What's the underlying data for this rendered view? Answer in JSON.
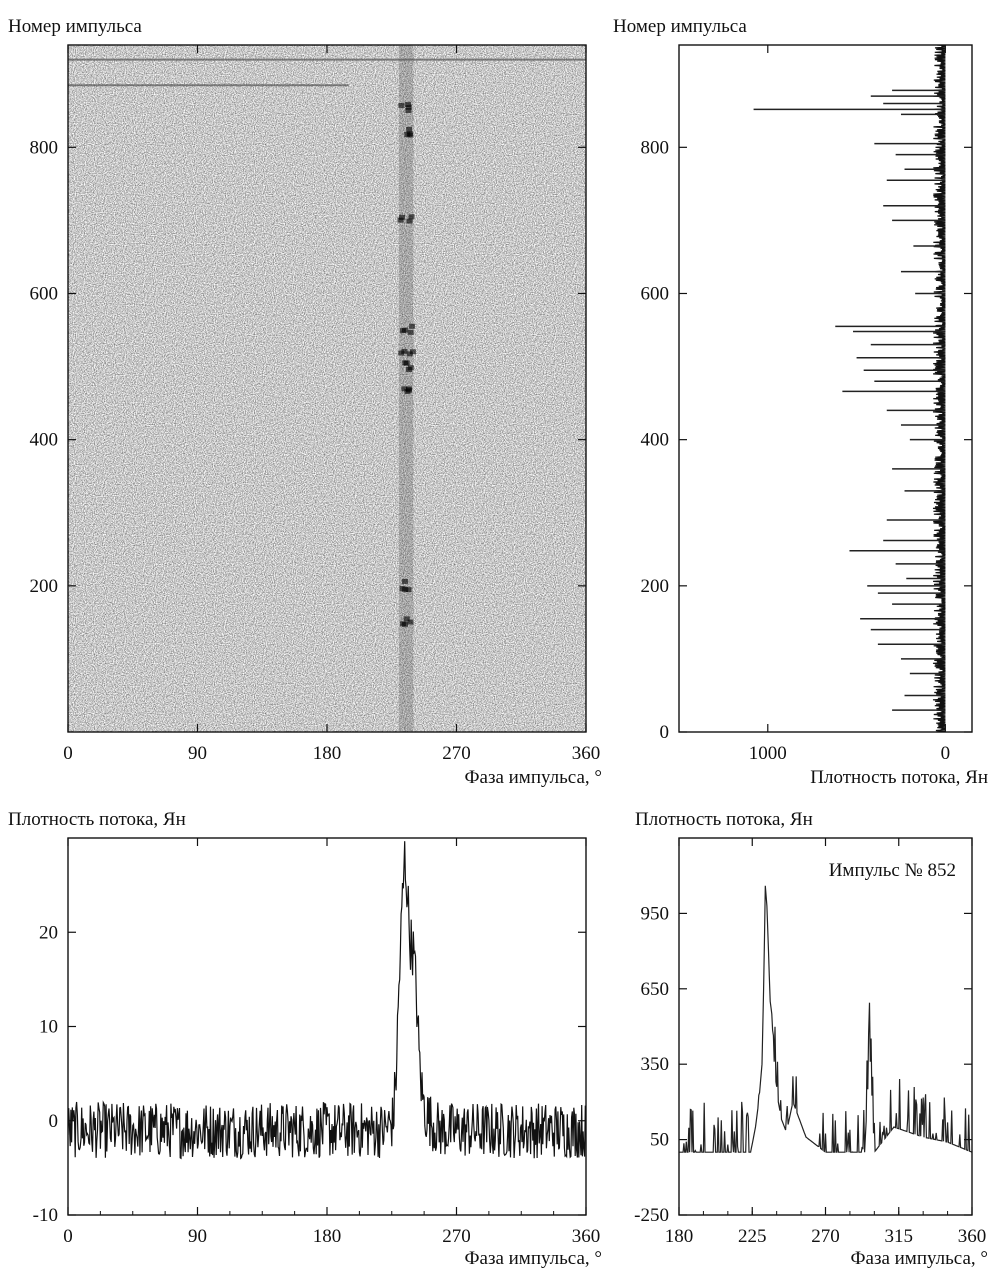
{
  "chart_data": [
    {
      "id": "waterfall",
      "type": "heatmap",
      "ylabel": "Номер импульса",
      "xlabel": "Фаза импульса, °",
      "xlim": [
        0,
        360
      ],
      "ylim": [
        0,
        940
      ],
      "xticks": [
        0,
        90,
        180,
        270,
        360
      ],
      "yticks": [
        200,
        400,
        600,
        800
      ],
      "colormap": "grayscale noise, darker = brighter pulse",
      "features": [
        {
          "kind": "vertical-band",
          "phase_center": 235,
          "phase_width": 10,
          "pulse_range": [
            0,
            940
          ]
        },
        {
          "kind": "horizontal-line",
          "pulse": 920,
          "phase_range": [
            0,
            360
          ]
        },
        {
          "kind": "horizontal-line",
          "pulse": 885,
          "phase_range": [
            0,
            195
          ]
        }
      ],
      "bright_pulses": [
        852,
        820,
        700,
        550,
        520,
        500,
        470,
        200,
        150
      ]
    },
    {
      "id": "flux-vs-pulse",
      "type": "line",
      "ylabel": "Номер импульса",
      "xlabel": "Плотность потока, Ян",
      "xlim": [
        1500,
        -150
      ],
      "ylim": [
        0,
        940
      ],
      "xticks": [
        1000,
        0
      ],
      "yticks": [
        0,
        200,
        400,
        600,
        800
      ],
      "spikes": [
        [
          852,
          1080
        ],
        [
          870,
          420
        ],
        [
          878,
          300
        ],
        [
          860,
          350
        ],
        [
          845,
          250
        ],
        [
          805,
          400
        ],
        [
          790,
          280
        ],
        [
          770,
          230
        ],
        [
          755,
          330
        ],
        [
          720,
          350
        ],
        [
          700,
          300
        ],
        [
          665,
          180
        ],
        [
          630,
          250
        ],
        [
          600,
          170
        ],
        [
          555,
          620
        ],
        [
          548,
          520
        ],
        [
          530,
          420
        ],
        [
          512,
          500
        ],
        [
          495,
          460
        ],
        [
          480,
          400
        ],
        [
          466,
          580
        ],
        [
          440,
          330
        ],
        [
          420,
          250
        ],
        [
          400,
          200
        ],
        [
          360,
          300
        ],
        [
          330,
          230
        ],
        [
          290,
          330
        ],
        [
          262,
          350
        ],
        [
          248,
          540
        ],
        [
          230,
          280
        ],
        [
          210,
          220
        ],
        [
          200,
          440
        ],
        [
          190,
          380
        ],
        [
          175,
          300
        ],
        [
          155,
          480
        ],
        [
          140,
          420
        ],
        [
          120,
          380
        ],
        [
          100,
          250
        ],
        [
          80,
          200
        ],
        [
          50,
          230
        ],
        [
          30,
          300
        ]
      ]
    },
    {
      "id": "average-profile",
      "type": "line",
      "ylabel": "Плотность потока, Ян",
      "xlabel": "Фаза импульса, °",
      "xlim": [
        0,
        360
      ],
      "ylim": [
        -10,
        30
      ],
      "xticks": [
        0,
        90,
        180,
        270,
        360
      ],
      "yticks": [
        -10,
        0,
        10,
        20
      ],
      "x": [
        0,
        220,
        226,
        228,
        230,
        232,
        234,
        236,
        237,
        238,
        240,
        242,
        244,
        246,
        248,
        252,
        258,
        266,
        280,
        300,
        330,
        360
      ],
      "values": [
        -1,
        -1,
        0,
        5,
        14,
        22,
        28,
        24,
        21,
        19,
        18,
        14,
        7,
        3,
        1,
        0,
        -1,
        -1,
        -1,
        -1,
        -1,
        -1
      ]
    },
    {
      "id": "single-pulse",
      "type": "line",
      "ylabel": "Плотность потока, Ян",
      "xlabel": "Фаза импульса, °",
      "annotation": "Импульс № 852",
      "xlim": [
        180,
        360
      ],
      "ylim": [
        -250,
        1250
      ],
      "xticks": [
        180,
        225,
        270,
        315,
        360
      ],
      "yticks": [
        -250,
        50,
        350,
        650,
        950
      ],
      "x": [
        180,
        224,
        227,
        229,
        231,
        232,
        233,
        234,
        235,
        236,
        237,
        238,
        239,
        240,
        241,
        243,
        246,
        250,
        258,
        270,
        284,
        294,
        296,
        297,
        298,
        300,
        312,
        330,
        345,
        360
      ],
      "values": [
        0,
        0,
        100,
        200,
        350,
        650,
        1060,
        980,
        800,
        600,
        550,
        420,
        300,
        260,
        200,
        130,
        80,
        200,
        60,
        0,
        0,
        0,
        250,
        420,
        300,
        0,
        100,
        60,
        40,
        0
      ]
    }
  ]
}
